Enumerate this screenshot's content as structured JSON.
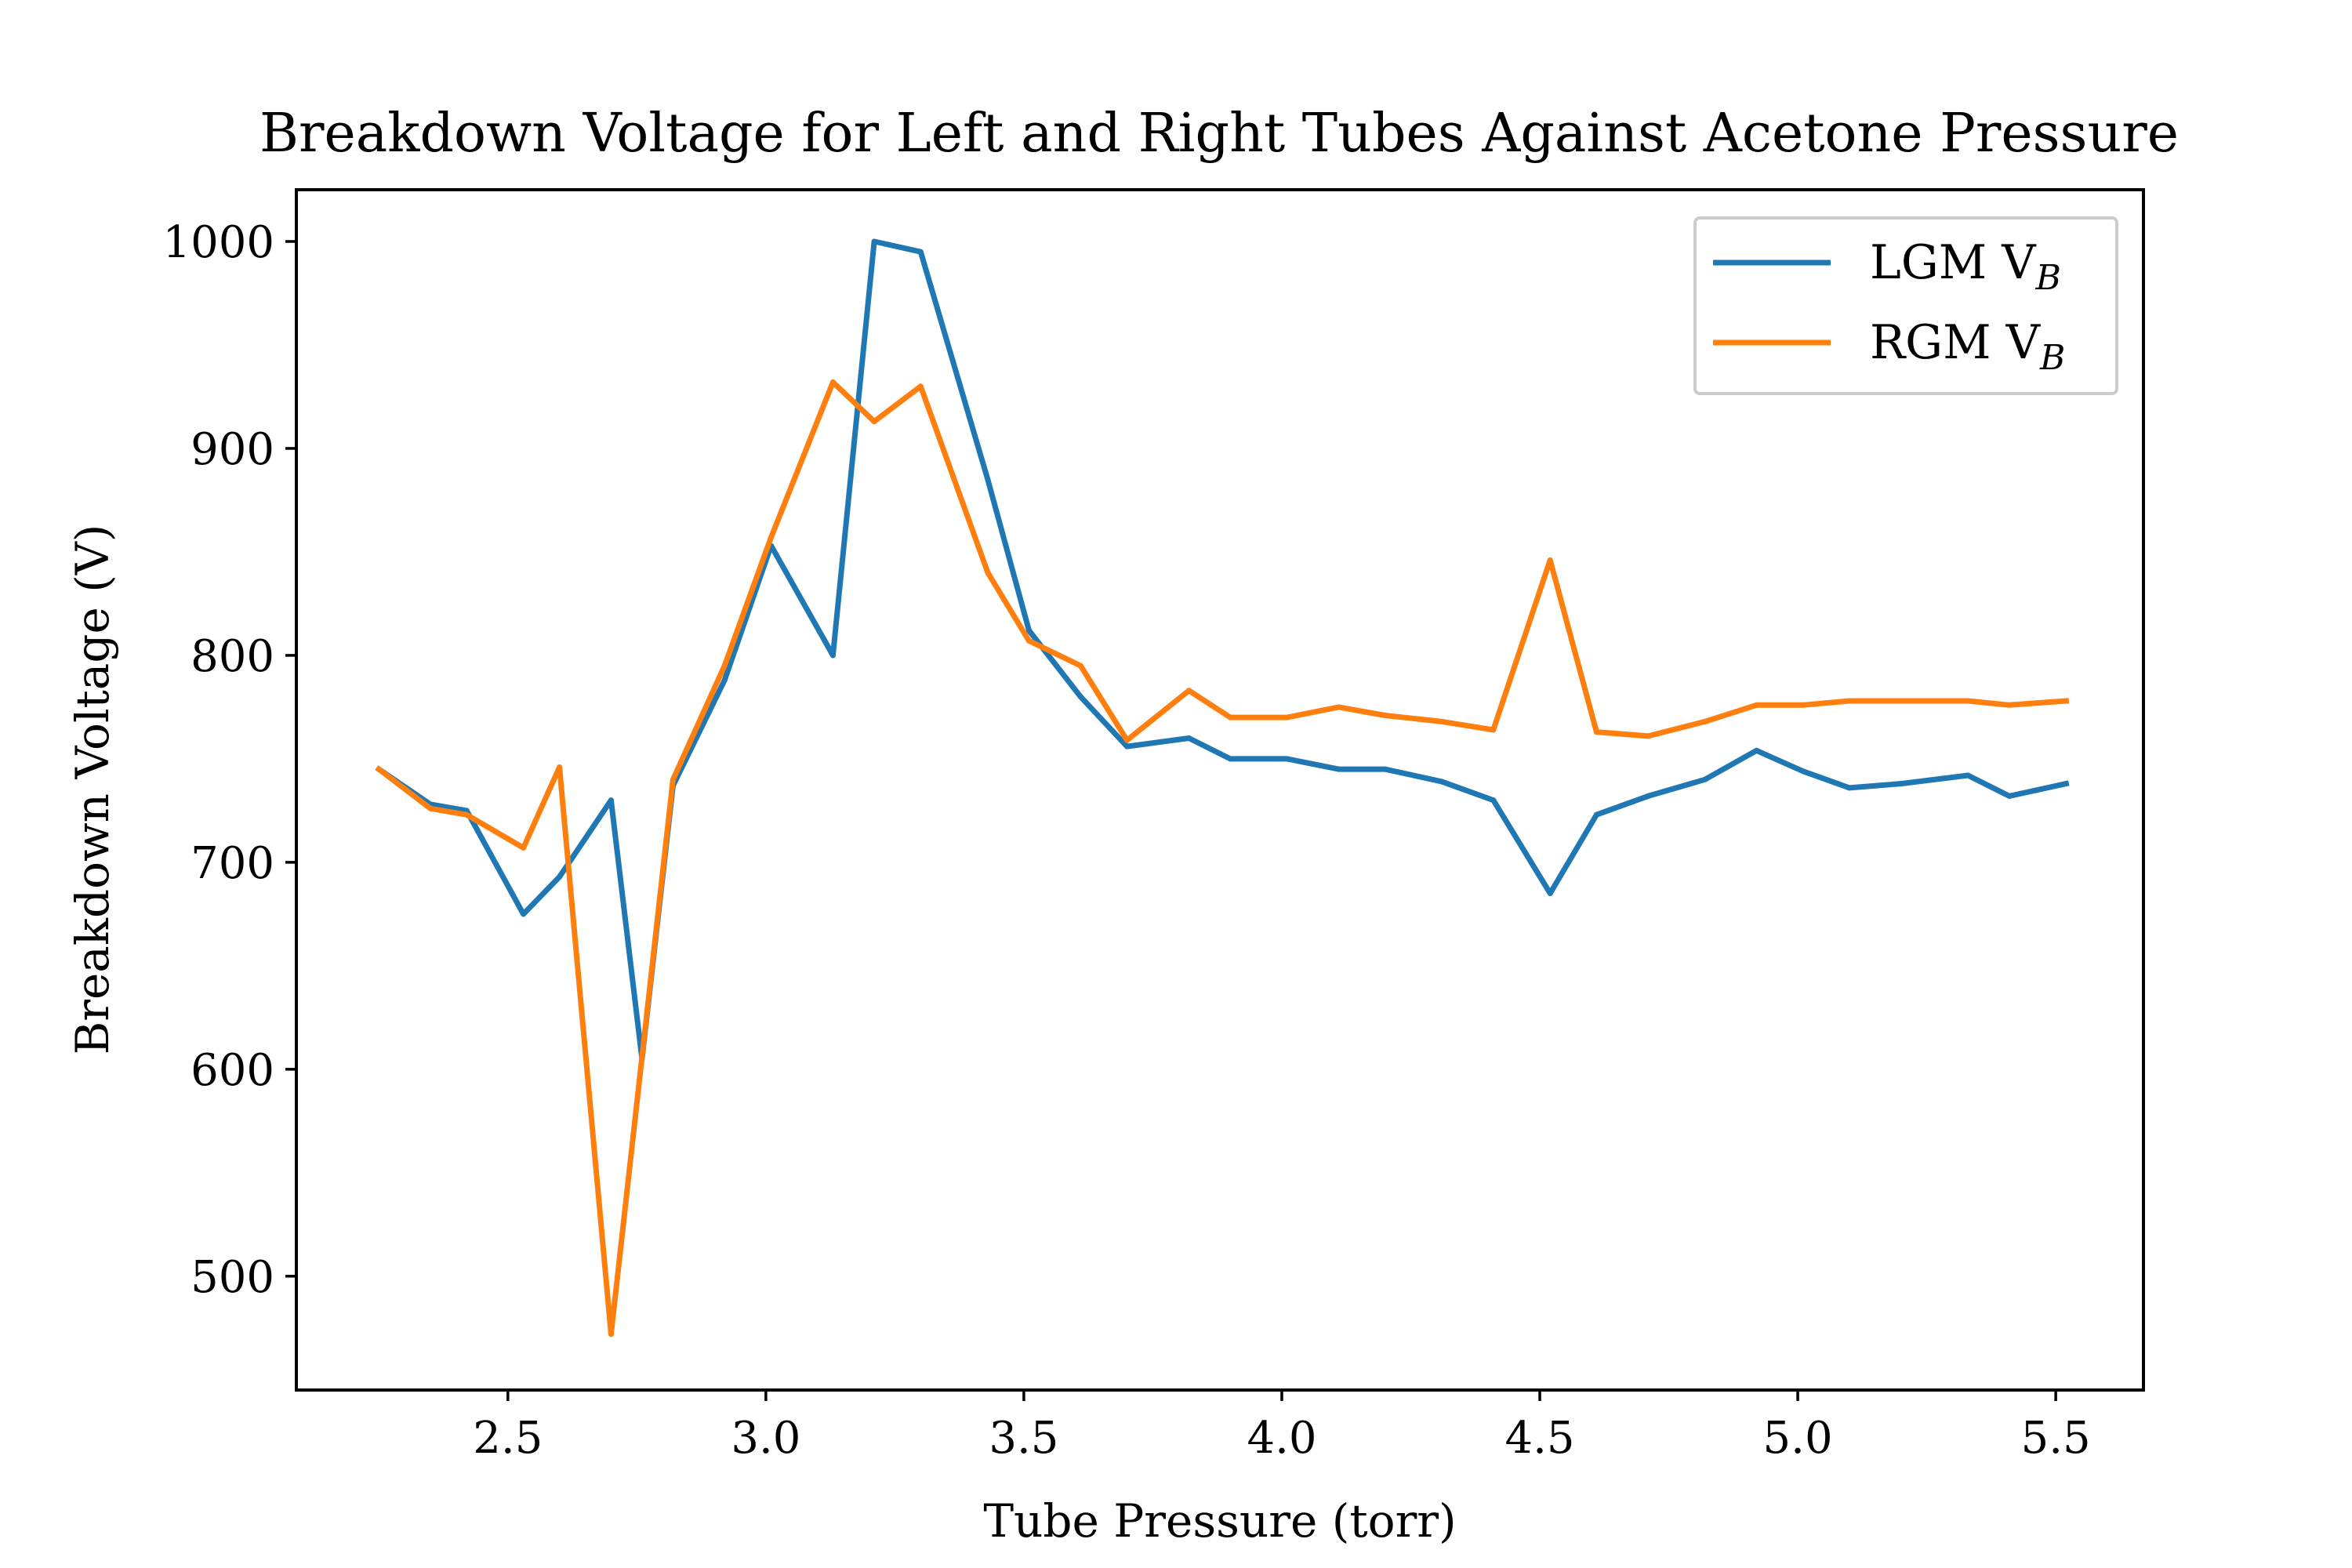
{
  "chart_data": {
    "type": "line",
    "title": "Breakdown Voltage for Left and Right Tubes Against Acetone Pressure",
    "xlabel": "Tube Pressure (torr)",
    "ylabel": "Breakdown Voltage (V)",
    "xlim": [
      2.09,
      5.67
    ],
    "ylim": [
      445,
      1025
    ],
    "xticks": [
      2.5,
      3.0,
      3.5,
      4.0,
      4.5,
      5.0,
      5.5
    ],
    "xtick_labels": [
      "2.5",
      "3.0",
      "3.5",
      "4.0",
      "4.5",
      "5.0",
      "5.5"
    ],
    "yticks": [
      500,
      600,
      700,
      800,
      900,
      1000
    ],
    "ytick_labels": [
      "500",
      "600",
      "700",
      "800",
      "900",
      "1000"
    ],
    "grid": false,
    "legend_position": "top-right",
    "series": [
      {
        "name": "LGM V",
        "name_subscript": "B",
        "color": "#1f77b4",
        "x": [
          2.25,
          2.35,
          2.42,
          2.53,
          2.6,
          2.7,
          2.76,
          2.82,
          2.92,
          3.01,
          3.13,
          3.21,
          3.3,
          3.43,
          3.51,
          3.61,
          3.7,
          3.82,
          3.9,
          4.01,
          4.11,
          4.2,
          4.31,
          4.41,
          4.52,
          4.61,
          4.71,
          4.82,
          4.92,
          5.01,
          5.1,
          5.2,
          5.33,
          5.41,
          5.52
        ],
        "y": [
          745,
          728,
          725,
          675,
          693,
          730,
          605,
          737,
          788,
          853,
          800,
          1000,
          995,
          885,
          812,
          780,
          756,
          760,
          750,
          750,
          745,
          745,
          739,
          730,
          685,
          723,
          732,
          740,
          754,
          744,
          736,
          738,
          742,
          732,
          738
        ]
      },
      {
        "name": "RGM V",
        "name_subscript": "B",
        "color": "#ff7f0e",
        "x": [
          2.25,
          2.35,
          2.42,
          2.53,
          2.6,
          2.7,
          2.82,
          2.92,
          3.01,
          3.13,
          3.21,
          3.3,
          3.43,
          3.51,
          3.61,
          3.7,
          3.82,
          3.9,
          4.01,
          4.11,
          4.2,
          4.31,
          4.41,
          4.52,
          4.61,
          4.71,
          4.82,
          4.92,
          5.01,
          5.1,
          5.2,
          5.33,
          5.41,
          5.52
        ],
        "y": [
          745,
          726,
          723,
          707,
          746,
          472,
          740,
          795,
          857,
          932,
          913,
          930,
          840,
          807,
          795,
          759,
          783,
          770,
          770,
          775,
          771,
          768,
          764,
          846,
          763,
          761,
          768,
          776,
          776,
          778,
          778,
          778,
          776,
          778
        ]
      }
    ]
  }
}
